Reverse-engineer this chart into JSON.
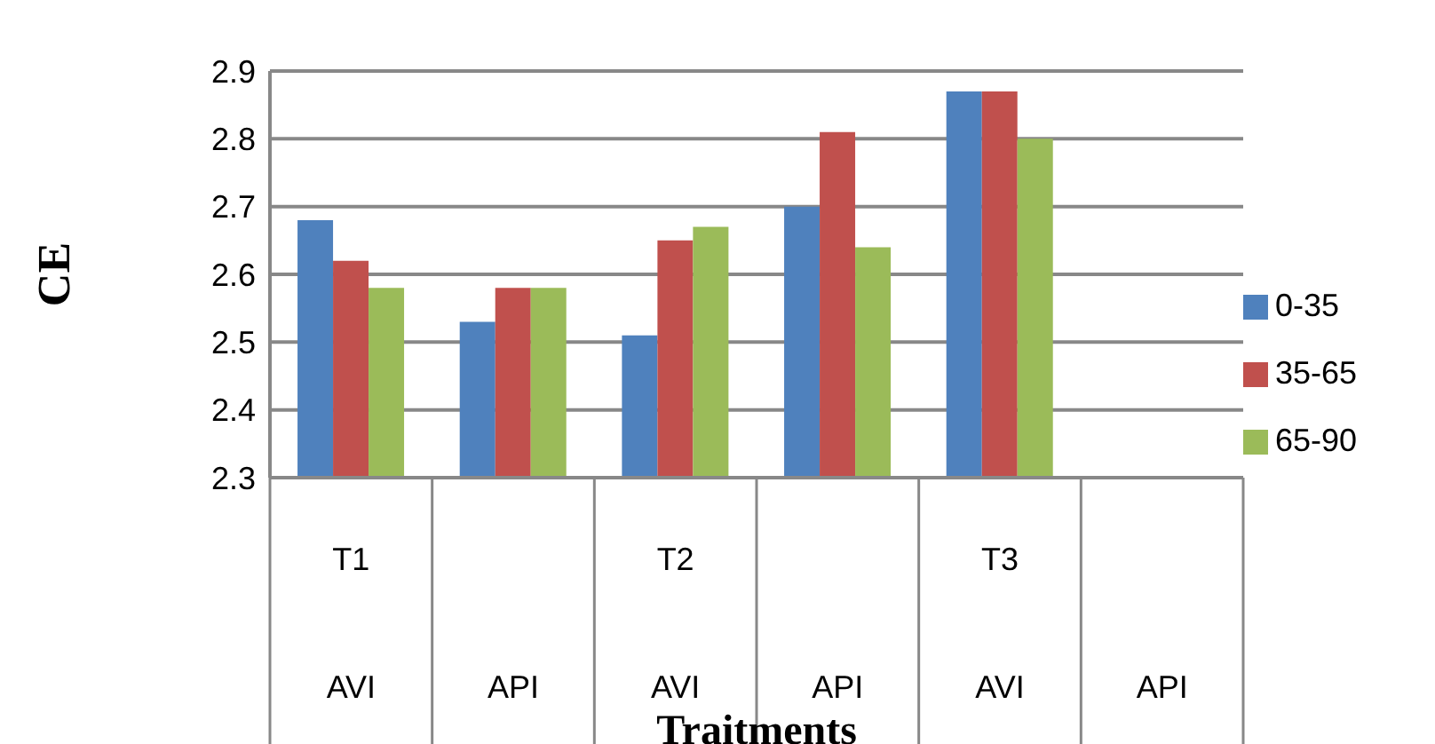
{
  "chart_data": {
    "type": "bar",
    "ylabel": "CE",
    "xlabel": "Traitments",
    "categories": [
      "T1 AVI",
      "API",
      "T2 AVI",
      "API",
      "T3 AVI",
      "API"
    ],
    "series": [
      {
        "name": "0-35",
        "color": "#4f81bd",
        "values": [
          2.68,
          2.53,
          2.51,
          2.7,
          2.87,
          null
        ]
      },
      {
        "name": "35-65",
        "color": "#c0504d",
        "values": [
          2.62,
          2.58,
          2.65,
          2.81,
          2.87,
          null
        ]
      },
      {
        "name": "65-90",
        "color": "#9bbb59",
        "values": [
          2.58,
          2.58,
          2.67,
          2.64,
          2.8,
          null
        ]
      }
    ],
    "ylim": [
      2.3,
      2.9
    ],
    "yticks": [
      2.3,
      2.4,
      2.5,
      2.6,
      2.7,
      2.8,
      2.9
    ],
    "grid": "y",
    "legend": "right"
  }
}
